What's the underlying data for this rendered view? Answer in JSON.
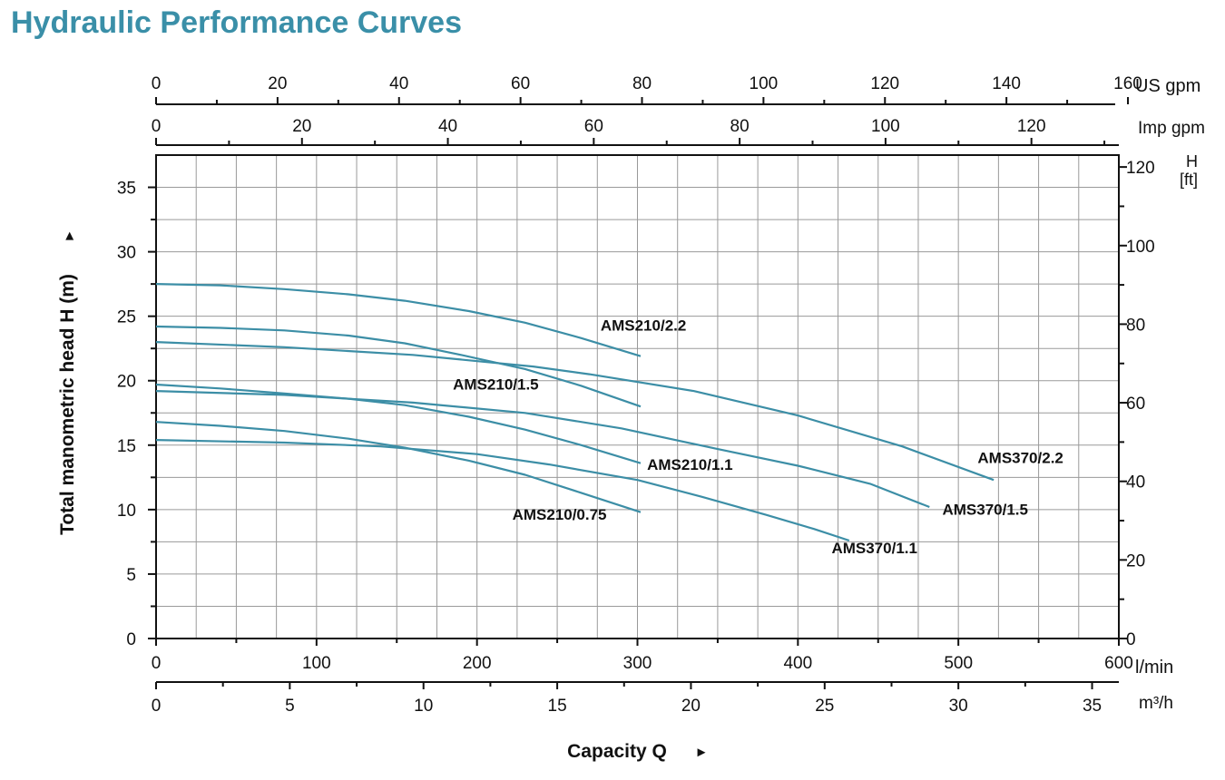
{
  "page": {
    "title": "Hydraulic Performance Curves",
    "title_color": "#3a8fa8"
  },
  "chart_data": {
    "type": "line",
    "title": "Hydraulic Performance Curves",
    "xlabel": "Capacity Q",
    "xlabel_arrow": "►",
    "ylabel": "Total manometric head H (m)",
    "ylabel_arrow": "►",
    "xlim": [
      0,
      600
    ],
    "ylim": [
      0,
      37.5
    ],
    "grid": true,
    "curve_color": "#3c8ea6",
    "x_ticks": [
      0,
      100,
      200,
      300,
      400,
      500,
      600
    ],
    "x_unit": "l/min",
    "y_ticks": [
      0,
      5,
      10,
      15,
      20,
      25,
      30,
      35
    ],
    "secondary_axes": {
      "us_gpm": {
        "unit": "US gpm",
        "ticks": [
          0,
          20,
          40,
          60,
          80,
          100,
          120,
          140,
          160
        ],
        "per_lmin": 0.264172
      },
      "imp_gpm": {
        "unit": "Imp gpm",
        "ticks": [
          0,
          20,
          40,
          60,
          80,
          100,
          120
        ],
        "per_lmin": 0.219969
      },
      "m3h": {
        "unit": "m³/h",
        "ticks": [
          0,
          5,
          10,
          15,
          20,
          25,
          30,
          35
        ],
        "per_lmin": 0.06
      },
      "ft": {
        "unit_line1": "H",
        "unit_line2": "[ft]",
        "ticks": [
          0,
          20,
          40,
          60,
          80,
          100,
          120
        ],
        "per_m": 3.28084
      }
    },
    "series": [
      {
        "name": "AMS210/2.2",
        "points": [
          [
            0,
            27.5
          ],
          [
            40,
            27.4
          ],
          [
            80,
            27.1
          ],
          [
            120,
            26.7
          ],
          [
            155,
            26.2
          ],
          [
            195,
            25.4
          ],
          [
            230,
            24.5
          ],
          [
            265,
            23.3
          ],
          [
            302,
            21.9
          ]
        ]
      },
      {
        "name": "AMS210/1.5",
        "points": [
          [
            0,
            24.2
          ],
          [
            40,
            24.1
          ],
          [
            80,
            23.9
          ],
          [
            120,
            23.5
          ],
          [
            155,
            22.9
          ],
          [
            190,
            22.0
          ],
          [
            230,
            20.9
          ],
          [
            265,
            19.6
          ],
          [
            302,
            18.0
          ]
        ]
      },
      {
        "name": "AMS210/1.1",
        "points": [
          [
            0,
            19.7
          ],
          [
            40,
            19.4
          ],
          [
            80,
            19.0
          ],
          [
            120,
            18.6
          ],
          [
            155,
            18.1
          ],
          [
            195,
            17.2
          ],
          [
            230,
            16.2
          ],
          [
            265,
            15.0
          ],
          [
            302,
            13.6
          ]
        ]
      },
      {
        "name": "AMS210/0.75",
        "points": [
          [
            0,
            16.8
          ],
          [
            40,
            16.5
          ],
          [
            80,
            16.1
          ],
          [
            120,
            15.5
          ],
          [
            155,
            14.8
          ],
          [
            195,
            13.8
          ],
          [
            230,
            12.7
          ],
          [
            265,
            11.3
          ],
          [
            302,
            9.8
          ]
        ]
      },
      {
        "name": "AMS370/2.2",
        "points": [
          [
            0,
            23.0
          ],
          [
            80,
            22.6
          ],
          [
            160,
            22.0
          ],
          [
            235,
            21.1
          ],
          [
            270,
            20.5
          ],
          [
            335,
            19.2
          ],
          [
            400,
            17.3
          ],
          [
            465,
            14.9
          ],
          [
            522,
            12.3
          ]
        ]
      },
      {
        "name": "AMS370/1.5",
        "points": [
          [
            0,
            19.2
          ],
          [
            80,
            18.9
          ],
          [
            160,
            18.3
          ],
          [
            230,
            17.5
          ],
          [
            290,
            16.3
          ],
          [
            350,
            14.7
          ],
          [
            400,
            13.4
          ],
          [
            445,
            12.0
          ],
          [
            482,
            10.2
          ]
        ]
      },
      {
        "name": "AMS370/1.1",
        "points": [
          [
            0,
            15.4
          ],
          [
            80,
            15.2
          ],
          [
            140,
            14.9
          ],
          [
            200,
            14.3
          ],
          [
            245,
            13.5
          ],
          [
            300,
            12.3
          ],
          [
            340,
            11.0
          ],
          [
            380,
            9.6
          ],
          [
            410,
            8.5
          ],
          [
            432,
            7.6
          ]
        ]
      }
    ],
    "annotations": [
      {
        "text": "AMS210/2.2",
        "x": 277,
        "y": 23.9
      },
      {
        "text": "AMS210/1.5",
        "x": 185,
        "y": 19.3
      },
      {
        "text": "AMS210/1.1",
        "x": 306,
        "y": 13.1
      },
      {
        "text": "AMS210/0.75",
        "x": 222,
        "y": 9.2
      },
      {
        "text": "AMS370/2.2",
        "x": 512,
        "y": 13.6
      },
      {
        "text": "AMS370/1.5",
        "x": 490,
        "y": 9.6
      },
      {
        "text": "AMS370/1.1",
        "x": 421,
        "y": 6.6
      }
    ]
  }
}
